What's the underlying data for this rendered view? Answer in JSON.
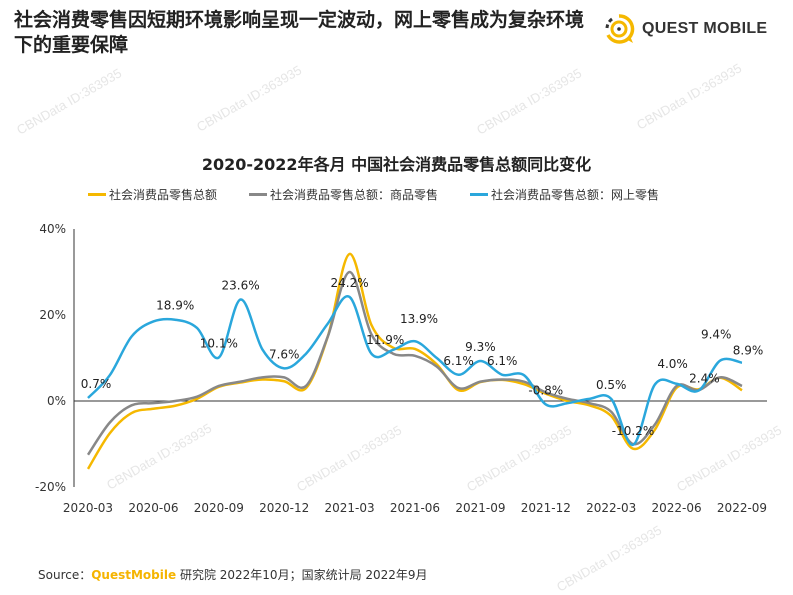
{
  "header": {
    "title": "社会消费零售因短期环境影响呈现一定波动，网上零售成为复杂环境下的重要保障",
    "logo_text": "QUEST MOBILE"
  },
  "watermark": "CBNData ID:363935",
  "source": {
    "prefix": "Source：",
    "brand": "QuestMobile",
    "rest": " 研究院 2022年10月；国家统计局 2022年9月"
  },
  "colors": {
    "total": "#f5b800",
    "goods": "#888888",
    "online": "#2aa7dc",
    "accent": "#f5b400"
  },
  "chart_data": {
    "type": "line",
    "title": "2020-2022年各月 中国社会消费品零售总额同比变化",
    "xlabel": "",
    "ylabel": "",
    "ylim": [
      -20,
      40
    ],
    "yticks": [
      "-20%",
      "0%",
      "20%",
      "40%"
    ],
    "ytick_values": [
      -20,
      0,
      20,
      40
    ],
    "x": [
      "2020-03",
      "2020-04",
      "2020-05",
      "2020-06",
      "2020-07",
      "2020-08",
      "2020-09",
      "2020-10",
      "2020-11",
      "2020-12",
      "2021-01",
      "2021-02",
      "2021-03",
      "2021-04",
      "2021-05",
      "2021-06",
      "2021-07",
      "2021-08",
      "2021-09",
      "2021-10",
      "2021-11",
      "2021-12",
      "2022-01",
      "2022-02",
      "2022-03",
      "2022-04",
      "2022-05",
      "2022-06",
      "2022-07",
      "2022-08",
      "2022-09"
    ],
    "xticks": [
      "2020-03",
      "2020-06",
      "2020-09",
      "2020-12",
      "2021-03",
      "2021-06",
      "2021-09",
      "2021-12",
      "2022-03",
      "2022-06",
      "2022-09"
    ],
    "legend_position": "top",
    "grid": false,
    "series": [
      {
        "name": "社会消费品零售总额",
        "color": "#f5b800",
        "values": [
          -15.8,
          -7.5,
          -2.8,
          -1.8,
          -1.1,
          0.5,
          3.3,
          4.3,
          5.0,
          4.6,
          3.0,
          15,
          34.2,
          17.7,
          12.4,
          12.1,
          8.5,
          2.5,
          4.4,
          4.9,
          3.9,
          1.7,
          0,
          -1,
          -3.5,
          -11.1,
          -6.7,
          3.1,
          2.7,
          5.4,
          2.5
        ]
      },
      {
        "name": "社会消费品零售总额：商品零售",
        "color": "#888888",
        "values": [
          -12.5,
          -5,
          -1,
          -0.5,
          0,
          1,
          3.5,
          4.5,
          5.5,
          5.5,
          3.5,
          15,
          30,
          15.5,
          11,
          10.5,
          8,
          3,
          4.5,
          5,
          4.5,
          2,
          0.5,
          -0.5,
          -2.5,
          -10,
          -5.5,
          3.5,
          2.5,
          5.5,
          3.5
        ]
      },
      {
        "name": "社会消费品零售总额：网上零售",
        "color": "#2aa7dc",
        "values": [
          0.7,
          6,
          15,
          18.5,
          18.9,
          17,
          10.1,
          23.6,
          12,
          7.6,
          11,
          18,
          24.2,
          11,
          11.9,
          13.9,
          10,
          6.1,
          9.3,
          6.1,
          6,
          -0.8,
          -0.5,
          0.5,
          0.5,
          -10.2,
          3.8,
          4.0,
          2.4,
          9.4,
          8.9
        ]
      }
    ],
    "data_labels": [
      {
        "x": "2020-03",
        "value": 0.7,
        "text": "0.7%"
      },
      {
        "x": "2020-07",
        "value": 18.9,
        "text": "18.9%"
      },
      {
        "x": "2020-09",
        "value": 10.1,
        "text": "10.1%"
      },
      {
        "x": "2020-10",
        "value": 23.6,
        "text": "23.6%"
      },
      {
        "x": "2020-12",
        "value": 7.6,
        "text": "7.6%"
      },
      {
        "x": "2021-03",
        "value": 24.2,
        "text": "24.2%"
      },
      {
        "x": "2021-05",
        "value": 11.9,
        "text": "11.9%"
      },
      {
        "x": "2021-06",
        "value": 13.9,
        "text": "13.9%"
      },
      {
        "x": "2021-08",
        "value": 6.1,
        "text": "6.1%"
      },
      {
        "x": "2021-09",
        "value": 9.3,
        "text": "9.3%"
      },
      {
        "x": "2021-10",
        "value": 6.1,
        "text": "6.1%"
      },
      {
        "x": "2021-12",
        "value": -0.8,
        "text": "-0.8%"
      },
      {
        "x": "2022-03",
        "value": 0.5,
        "text": "0.5%"
      },
      {
        "x": "2022-04",
        "value": -10.2,
        "text": "-10.2%"
      },
      {
        "x": "2022-06",
        "value": 4.0,
        "text": "4.0%"
      },
      {
        "x": "2022-07",
        "value": 2.4,
        "text": "2.4%"
      },
      {
        "x": "2022-08",
        "value": 9.4,
        "text": "9.4%"
      },
      {
        "x": "2022-09",
        "value": 8.9,
        "text": "8.9%"
      }
    ]
  }
}
